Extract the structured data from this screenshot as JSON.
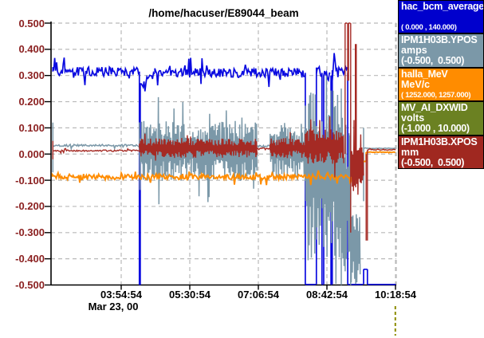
{
  "chart_data": {
    "type": "line",
    "title": "/home/hacuser/E89044_beam",
    "grid": true,
    "background": "#ffffff",
    "y_axis": {
      "min": -0.5,
      "max": 0.5,
      "step": 0.1,
      "tick_labels": [
        "0.500",
        "0.400",
        "0.300",
        "0.200",
        "0.100",
        "0.000",
        "-0.100",
        "-0.200",
        "-0.300",
        "-0.400",
        "-0.500"
      ],
      "label_color": "#8b2121"
    },
    "x_axis": {
      "tick_labels": [
        "03:54:54",
        "05:30:54",
        "07:06:54",
        "08:42:54",
        "10:18:54"
      ],
      "tick_hours": [
        3.915,
        5.515,
        7.115,
        8.715,
        10.315
      ],
      "range_hours": [
        2.31,
        10.33
      ],
      "date_label": "Mar 23, 00"
    },
    "series": [
      {
        "name": "hac_bcm_average",
        "unit": "",
        "range_label": "( 0.000 , 140.000)",
        "color": "#0a0ae0",
        "legend_bg": "#0000cd",
        "segments": [
          [
            "flat",
            2.32,
            4.34,
            0.315,
            0.018
          ],
          [
            "v",
            4.34,
            0.315,
            -0.5
          ],
          [
            "v",
            4.36,
            -0.5,
            0.26
          ],
          [
            "line",
            4.36,
            4.7,
            0.26,
            0.308,
            0.014
          ],
          [
            "flat",
            4.7,
            8.21,
            0.31,
            0.018
          ],
          [
            "v",
            8.21,
            0.31,
            -0.498
          ],
          [
            "flat",
            8.21,
            8.47,
            -0.498,
            0
          ],
          [
            "v",
            8.47,
            -0.498,
            0.33
          ],
          [
            "flat",
            8.47,
            8.6,
            0.315,
            0.02
          ],
          [
            "v",
            8.6,
            0.31,
            -0.498
          ],
          [
            "flat",
            8.6,
            8.64,
            -0.498,
            0
          ],
          [
            "v",
            8.64,
            -0.498,
            0.3
          ],
          [
            "flat",
            8.64,
            8.81,
            0.3,
            0.02
          ],
          [
            "v",
            8.81,
            0.3,
            -0.498
          ],
          [
            "flat",
            8.81,
            8.84,
            -0.498,
            0
          ],
          [
            "v",
            8.84,
            -0.498,
            0.32
          ],
          [
            "flat",
            8.84,
            9.2,
            0.31,
            0.025
          ],
          [
            "v",
            9.2,
            0.31,
            -0.498
          ],
          [
            "flat",
            9.2,
            9.57,
            -0.498,
            0
          ],
          [
            "v",
            9.57,
            -0.498,
            -0.44
          ],
          [
            "flat",
            9.57,
            9.66,
            -0.44,
            0
          ],
          [
            "v",
            9.66,
            -0.44,
            -0.498
          ],
          [
            "flat",
            9.66,
            10.33,
            -0.498,
            0
          ]
        ]
      },
      {
        "name": "IPM1H03B.YPOS",
        "unit": "amps",
        "range_label": "(-0.500,  0.500)",
        "color": "#7b98a8",
        "legend_bg": "#7b98a8",
        "segments": [
          [
            "v",
            2.32,
            0.12,
            -0.07
          ],
          [
            "flat",
            2.33,
            4.34,
            0.033,
            0.004
          ],
          [
            "osc",
            4.34,
            7.08,
            0.012,
            0.115
          ],
          [
            "flat",
            7.08,
            7.39,
            0.03,
            0.005
          ],
          [
            "osc",
            7.39,
            8.21,
            0.012,
            0.115
          ],
          [
            "osc",
            8.21,
            9.05,
            -0.08,
            0.33
          ],
          [
            "v",
            9.05,
            0.25,
            -0.5
          ],
          [
            "osc",
            9.05,
            9.27,
            -0.15,
            0.35
          ],
          [
            "v",
            9.27,
            0.3,
            -0.5
          ],
          [
            "osc",
            9.27,
            9.5,
            -0.35,
            0.15
          ],
          [
            "v",
            9.57,
            0.1,
            -0.18
          ],
          [
            "flat",
            9.57,
            10.33,
            0.022,
            0.001
          ]
        ]
      },
      {
        "name": "halla_MeV",
        "unit": "MeV/c",
        "range_label": "( 1252.000, 1257.000)",
        "color": "#ff8c00",
        "legend_bg": "#ff8c00",
        "segments": [
          [
            "flat",
            2.31,
            9.4,
            -0.087,
            0.011
          ],
          [
            "v",
            9.4,
            -0.087,
            -0.028
          ],
          [
            "flat",
            9.4,
            9.63,
            -0.028,
            0.001
          ],
          [
            "v",
            9.63,
            -0.028,
            0.007
          ],
          [
            "flat",
            9.63,
            10.33,
            0.007,
            0.001
          ]
        ]
      },
      {
        "name": "MV_AI_DXWID",
        "unit": "volts",
        "range_label": "(-1.000 , 10.000)",
        "color": "#8b8b00",
        "legend_bg": "#6b8122",
        "segments": []
      },
      {
        "name": "IPM1H03B.XPOS",
        "unit": "mm",
        "range_label": "(-0.500,  0.500)",
        "color": "#a52a24",
        "legend_bg": "#a02820",
        "segments": [
          [
            "v",
            2.32,
            0.05,
            -0.02
          ],
          [
            "flat",
            2.33,
            4.34,
            0.013,
            0.003
          ],
          [
            "osc",
            4.34,
            7.08,
            0.023,
            0.038
          ],
          [
            "flat",
            7.08,
            7.39,
            0.02,
            0.004
          ],
          [
            "osc",
            7.39,
            8.21,
            0.023,
            0.038
          ],
          [
            "osc",
            8.21,
            9.1,
            0.03,
            0.07
          ],
          [
            "v",
            9.14,
            0.0,
            0.5
          ],
          [
            "flat",
            9.14,
            9.2,
            0.5,
            0
          ],
          [
            "v",
            9.2,
            0.5,
            0.28
          ],
          [
            "v",
            9.22,
            0.28,
            0.5
          ],
          [
            "flat",
            9.22,
            9.27,
            0.5,
            0
          ],
          [
            "v",
            9.27,
            0.5,
            -0.3
          ],
          [
            "osc",
            9.27,
            9.38,
            -0.05,
            0.1
          ],
          [
            "v",
            9.38,
            -0.05,
            0.42
          ],
          [
            "v",
            9.4,
            0.42,
            -0.1
          ],
          [
            "osc",
            9.4,
            9.57,
            -0.05,
            0.08
          ],
          [
            "v",
            9.63,
            0.0,
            -0.33
          ],
          [
            "v",
            9.66,
            -0.33,
            0.017
          ],
          [
            "flat",
            9.66,
            10.33,
            0.017,
            0.002
          ]
        ]
      }
    ],
    "offscale_marker": {
      "series": "MV_AI_DXWID",
      "color": "#8b8b00",
      "x_hour": 10.33,
      "location": "below-axis-right-edge"
    }
  },
  "style_colors": {
    "grid": "#b9b9b9",
    "axis": "#000000",
    "y_label": "#8b2121",
    "x_label": "#000000",
    "legend_text": "#ffffff"
  }
}
